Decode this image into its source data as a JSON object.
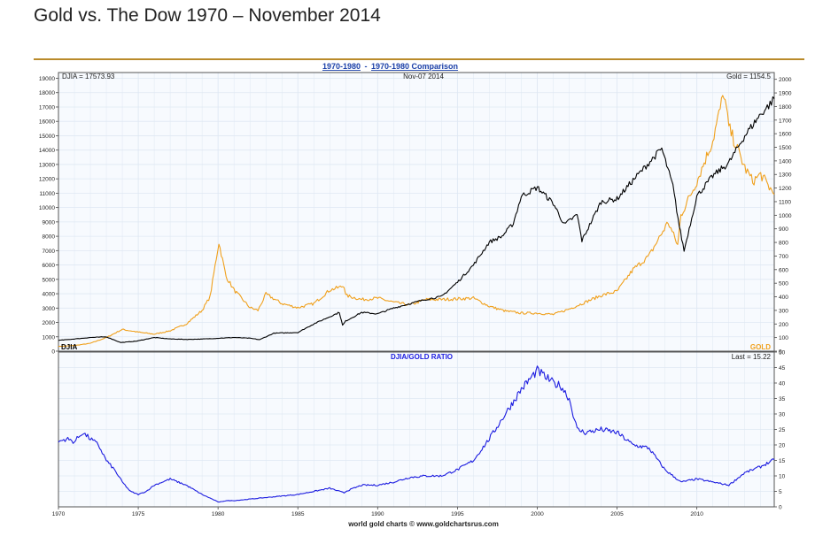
{
  "page": {
    "title": "Gold vs. The Dow 1970 – November 2014"
  },
  "header": {
    "link1": "1970-1980",
    "sep": " - ",
    "link2": "1970-1980 Comparison",
    "djia_readout": "DJIA = 17573.93",
    "date": "Nov-07 2014",
    "gold_readout": "Gold = 1154.5",
    "ratio_title": "DJIA/GOLD RATIO",
    "ratio_readout": "Last = 15.22",
    "djia_tag": "DJIA",
    "gold_tag": "GOLD",
    "footer": "world gold charts © www.goldchartsrus.com"
  },
  "colors": {
    "djia": "#000000",
    "gold": "#f0a01c",
    "ratio": "#1c1ce0",
    "link": "#1a3fa8",
    "grid": "#dfe8f3"
  },
  "chart_data": [
    {
      "type": "line",
      "title": "1970-1980 - 1970-1980 Comparison",
      "x_range": [
        1970,
        2014.85
      ],
      "x_ticks": [
        1970,
        1975,
        1980,
        1985,
        1990,
        1995,
        2000,
        2005,
        2010
      ],
      "left_axis": {
        "range": [
          0,
          19400
        ],
        "ticks": [
          0,
          1000,
          2000,
          3000,
          4000,
          5000,
          6000,
          7000,
          8000,
          9000,
          10000,
          11000,
          12000,
          13000,
          14000,
          15000,
          16000,
          17000,
          18000,
          19000
        ]
      },
      "right_axis": {
        "range": [
          0,
          2050
        ],
        "ticks": [
          0,
          100,
          200,
          300,
          400,
          500,
          600,
          700,
          800,
          900,
          1000,
          1100,
          1200,
          1300,
          1400,
          1500,
          1600,
          1700,
          1800,
          1900,
          2000
        ]
      },
      "series": [
        {
          "name": "DJIA",
          "axis": "left",
          "x": [
            1970,
            1971,
            1972,
            1973,
            1973.9,
            1974.9,
            1976,
            1977,
            1978,
            1979,
            1980,
            1981,
            1982,
            1982.6,
            1983.5,
            1985,
            1986,
            1987.6,
            1987.8,
            1988,
            1989,
            1990,
            1991,
            1992,
            1993,
            1994,
            1995,
            1996,
            1997,
            1997.8,
            1998.5,
            1999,
            2000,
            2001,
            2001.7,
            2002.5,
            2002.8,
            2004,
            2005,
            2006,
            2007.8,
            2008.5,
            2008.9,
            2009.2,
            2010,
            2011,
            2012,
            2013,
            2014,
            2014.5,
            2014.85
          ],
          "y": [
            750,
            850,
            950,
            1000,
            600,
            700,
            950,
            850,
            820,
            840,
            900,
            950,
            900,
            800,
            1250,
            1300,
            1900,
            2700,
            1800,
            2100,
            2700,
            2600,
            3000,
            3300,
            3600,
            3800,
            4800,
            6000,
            7600,
            8000,
            8900,
            10800,
            11400,
            10300,
            8800,
            9500,
            7700,
            10400,
            10600,
            11900,
            14100,
            11500,
            8700,
            7000,
            10800,
            12200,
            13100,
            15000,
            16500,
            17100,
            17574
          ]
        },
        {
          "name": "GOLD",
          "axis": "right",
          "x": [
            1970,
            1971,
            1972,
            1973,
            1974,
            1975,
            1976,
            1977,
            1978,
            1979,
            1979.5,
            1980.05,
            1980.5,
            1981,
            1982,
            1982.5,
            1983,
            1984,
            1985,
            1986,
            1987,
            1987.9,
            1988,
            1989,
            1990,
            1991,
            1992,
            1993,
            1994,
            1995,
            1996,
            1997,
            1998,
            1999,
            2000,
            2001,
            2002,
            2003,
            2004,
            2005,
            2006,
            2007,
            2008.2,
            2008.8,
            2009,
            2010,
            2011,
            2011.7,
            2012,
            2013,
            2013.5,
            2014,
            2014.85
          ],
          "y": [
            35,
            41,
            58,
            100,
            160,
            140,
            125,
            150,
            200,
            300,
            400,
            800,
            550,
            450,
            320,
            300,
            420,
            350,
            320,
            350,
            450,
            480,
            410,
            380,
            390,
            360,
            340,
            380,
            380,
            385,
            390,
            330,
            295,
            280,
            280,
            270,
            310,
            360,
            410,
            440,
            600,
            700,
            950,
            780,
            1000,
            1250,
            1550,
            1900,
            1650,
            1350,
            1250,
            1300,
            1154
          ]
        }
      ],
      "legend": [
        "DJIA",
        "GOLD"
      ]
    },
    {
      "type": "line",
      "title": "DJIA/GOLD RATIO",
      "x_range": [
        1970,
        2014.85
      ],
      "y_range": [
        0,
        50
      ],
      "y_ticks": [
        0,
        5,
        10,
        15,
        20,
        25,
        30,
        35,
        40,
        45,
        50
      ],
      "x_ticks": [
        1970,
        1975,
        1980,
        1985,
        1990,
        1995,
        2000,
        2005,
        2010
      ],
      "series": [
        {
          "name": "DJIA/GOLD RATIO",
          "x": [
            1970,
            1970.5,
            1971,
            1971.5,
            1972,
            1972.5,
            1973,
            1973.5,
            1974,
            1974.5,
            1975,
            1975.5,
            1976,
            1976.5,
            1977,
            1978,
            1979,
            1980.05,
            1980.5,
            1981,
            1982,
            1983,
            1984,
            1985,
            1986,
            1987,
            1987.9,
            1988,
            1989,
            1990,
            1991,
            1992,
            1993,
            1994,
            1995,
            1996,
            1997,
            1998,
            1999,
            2000,
            2000.5,
            2001,
            2001.5,
            2002,
            2002.5,
            2003,
            2004,
            2005,
            2006,
            2007,
            2008,
            2009,
            2010,
            2011,
            2012,
            2013,
            2013.5,
            2014,
            2014.85
          ],
          "y": [
            21,
            22,
            21,
            24,
            22,
            20,
            15,
            12,
            8,
            5,
            4,
            5,
            7,
            8,
            9,
            7,
            4,
            1.5,
            2,
            2,
            2.5,
            3,
            3.5,
            4,
            5,
            6,
            4.5,
            5,
            7,
            7,
            8,
            9.5,
            10,
            10,
            12,
            15,
            22,
            30,
            38,
            44,
            42,
            40,
            39,
            35,
            25,
            24,
            25,
            24,
            20,
            19,
            12,
            8,
            9,
            8,
            7,
            11,
            12,
            13,
            15.22
          ]
        }
      ]
    }
  ]
}
